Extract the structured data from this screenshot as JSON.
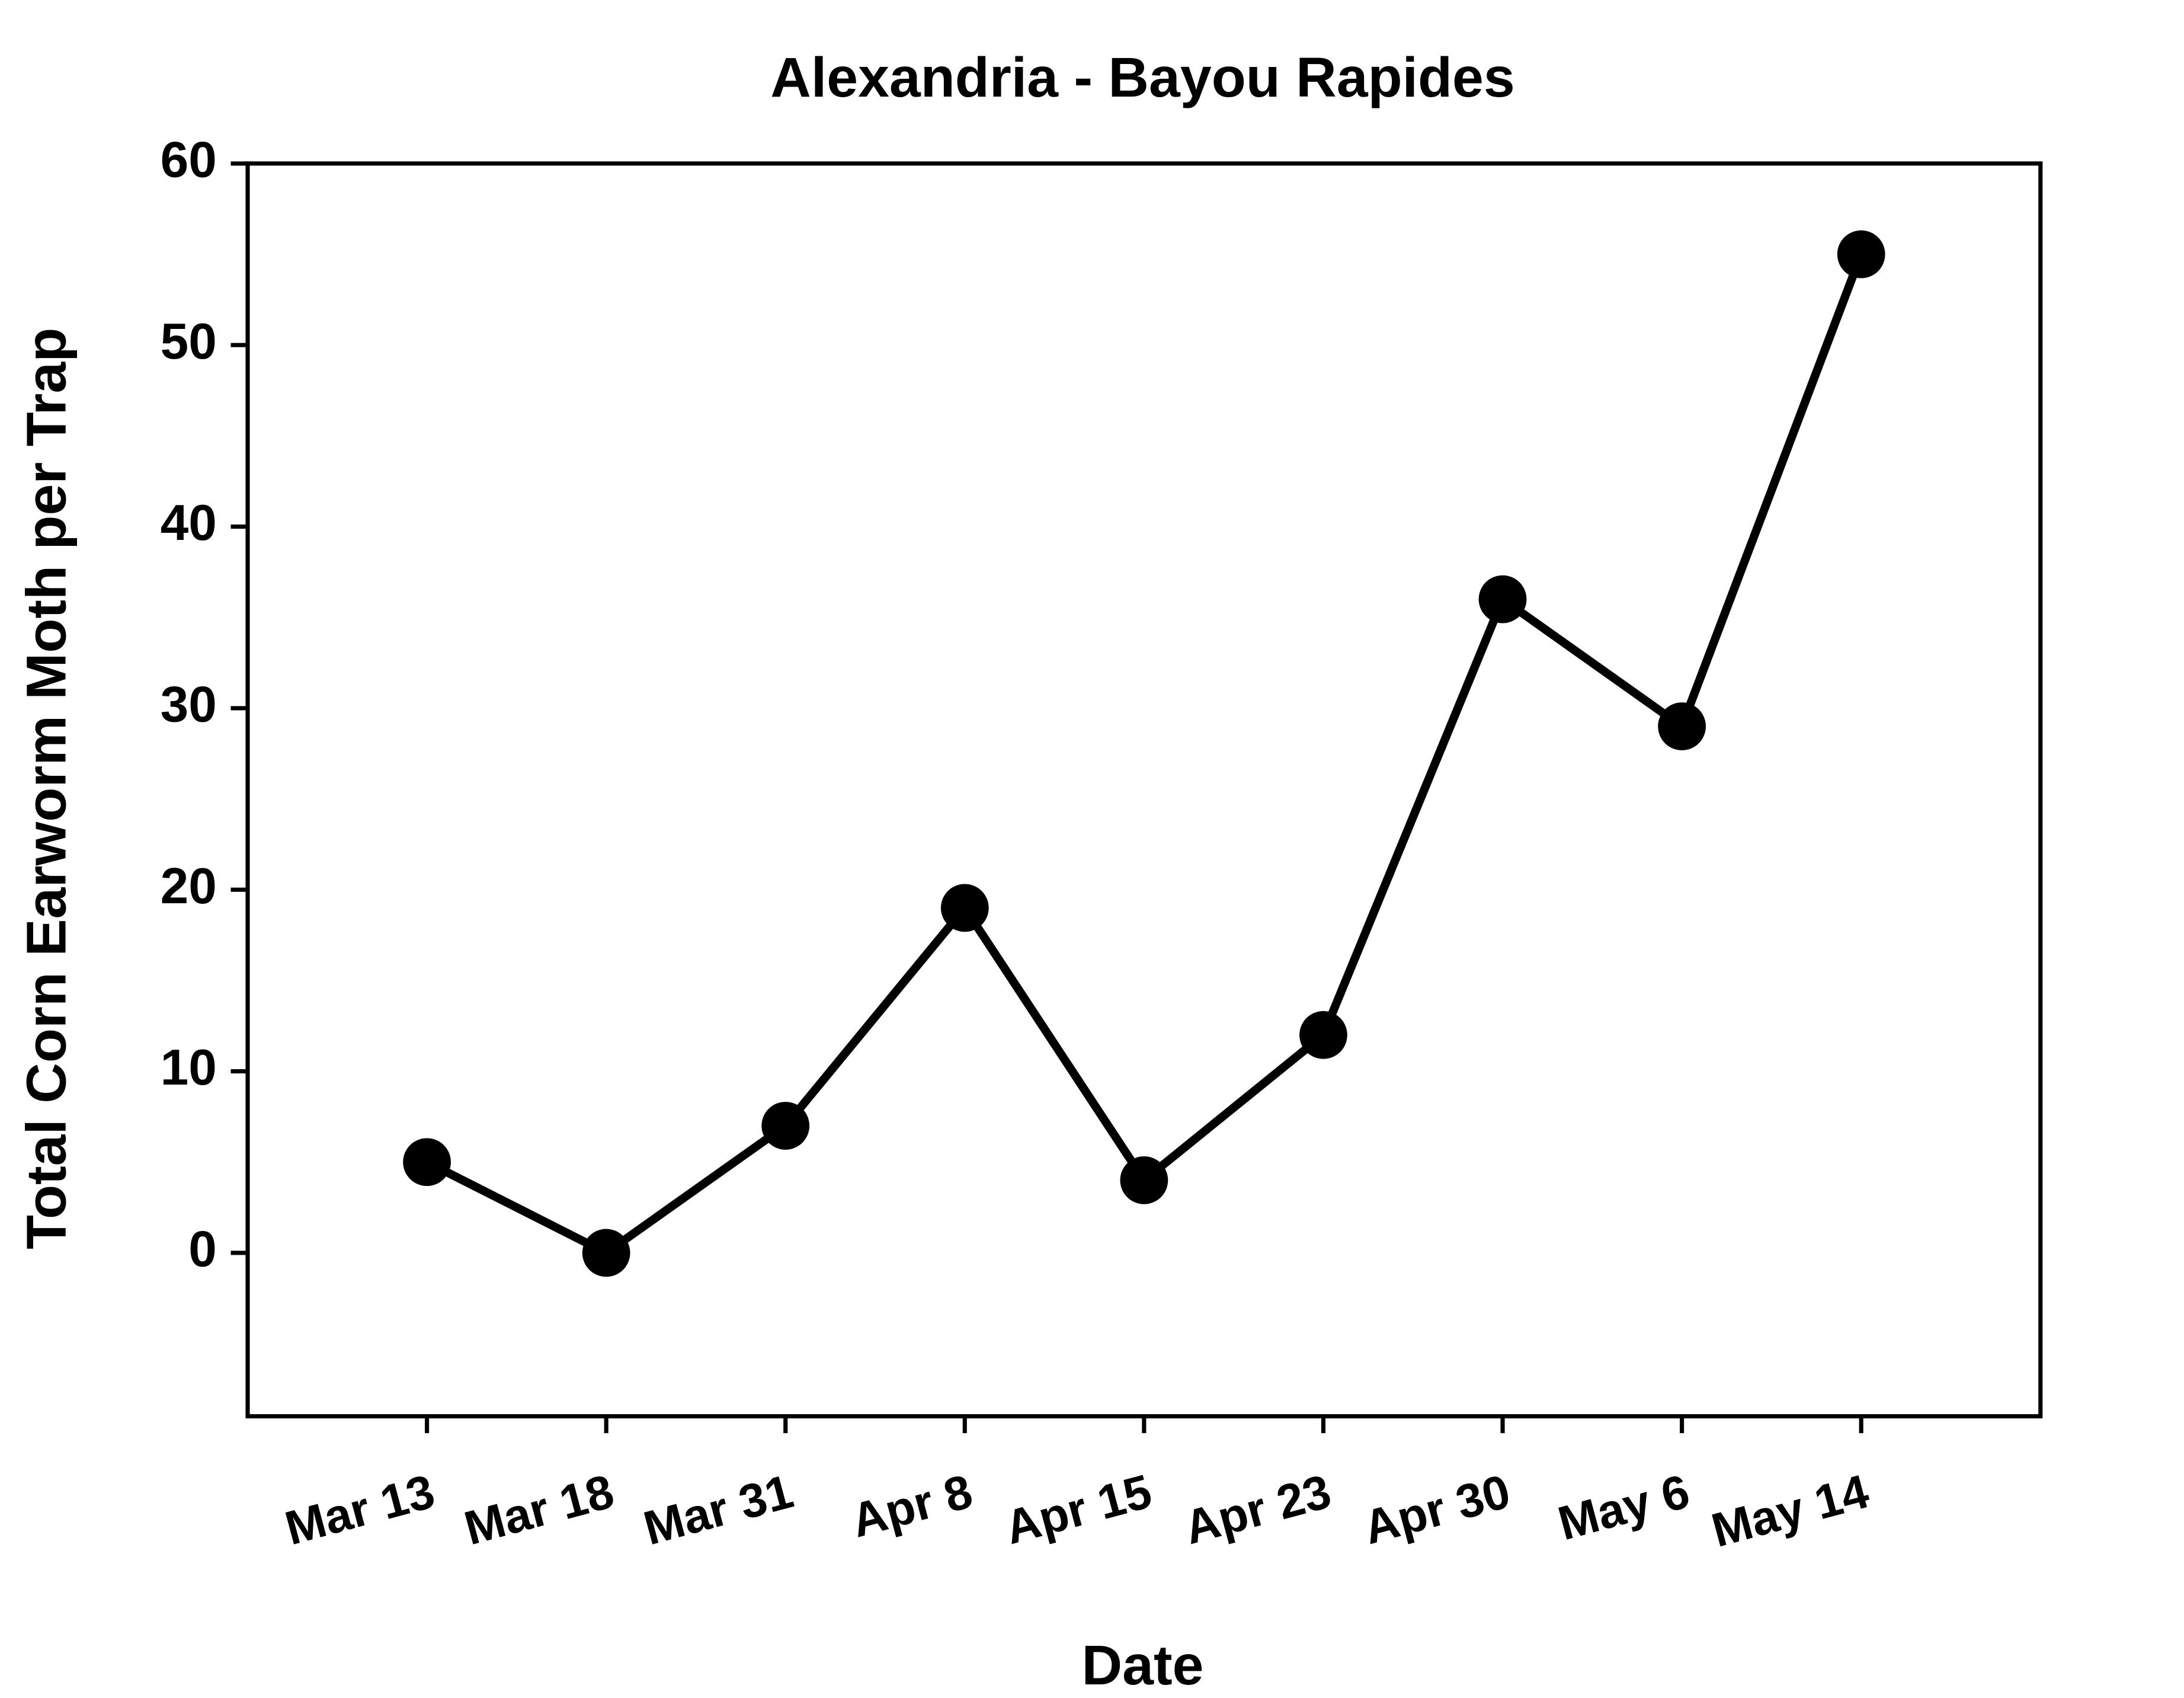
{
  "chart_data": {
    "type": "line",
    "title": "Alexandria -  Bayou Rapides",
    "x_label": "Date",
    "y_label": "Total Corn Earworm Moth per Trap",
    "categories": [
      "Mar 13",
      "Mar 18",
      "Mar 31",
      "Apr 8",
      "Apr 15",
      "Apr 23",
      "Apr 30",
      "May 6",
      "May 14"
    ],
    "series": [
      {
        "color": "#000000",
        "values": [
          5,
          0,
          7,
          19,
          4,
          12,
          36,
          29,
          55
        ]
      }
    ],
    "ylim": [
      -9,
      60
    ],
    "yticks": [
      0,
      10,
      20,
      30,
      40,
      50,
      60
    ],
    "grid": false
  }
}
